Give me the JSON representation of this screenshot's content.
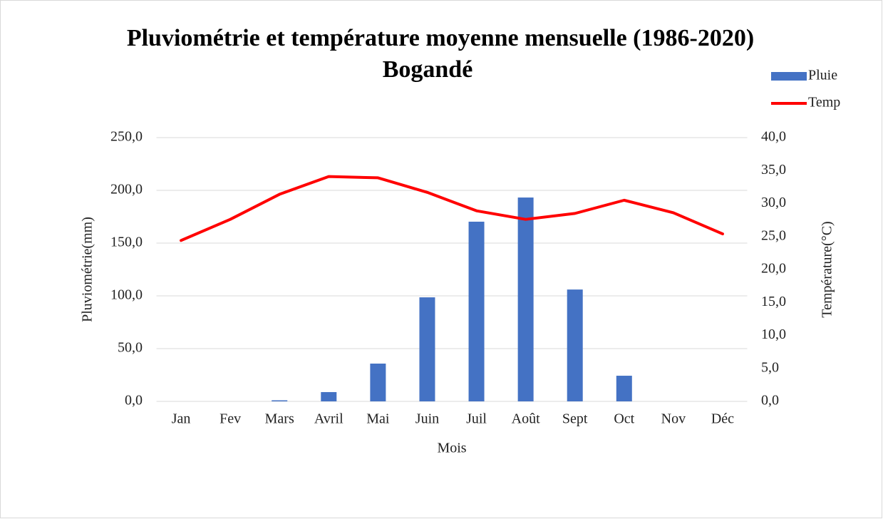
{
  "chart_data": {
    "type": "bar_line",
    "title": "Pluviométrie et température moyenne mensuelle (1986-2020)",
    "subtitle": "Bogandé",
    "x_label": "Mois",
    "y_label": "Pluviométrie(mm)",
    "y2_label": "Température(°C)",
    "categories": [
      "Jan",
      "Fev",
      "Mars",
      "Avril",
      "Mai",
      "Juin",
      "Juil",
      "Août",
      "Sept",
      "Oct",
      "Nov",
      "Déc"
    ],
    "series": [
      {
        "name": "Pluie",
        "type": "bar",
        "color": "#4472c4",
        "values": [
          0,
          0,
          1,
          8.8,
          35.8,
          98.6,
          170.3,
          193.2,
          106,
          24.3,
          0,
          0
        ]
      },
      {
        "name": "Temp",
        "type": "line",
        "axis": "y2",
        "color": "#ff0000",
        "values": [
          24.4,
          27.6,
          31.4,
          34.1,
          33.9,
          31.7,
          28.9,
          27.6,
          28.5,
          30.5,
          28.6,
          25.4
        ]
      }
    ],
    "ylim": [
      0,
      250
    ],
    "yticks": [
      {
        "value": 0,
        "label": "0,0"
      },
      {
        "value": 50,
        "label": "50,0"
      },
      {
        "value": 100,
        "label": "100,0"
      },
      {
        "value": 150,
        "label": "150,0"
      },
      {
        "value": 200,
        "label": "200,0"
      },
      {
        "value": 250,
        "label": "250,0"
      }
    ],
    "y2lim": [
      0,
      40
    ],
    "y2ticks": [
      {
        "value": 0,
        "label": "0,0"
      },
      {
        "value": 5,
        "label": "5,0"
      },
      {
        "value": 10,
        "label": "10,0"
      },
      {
        "value": 15,
        "label": "15,0"
      },
      {
        "value": 20,
        "label": "20,0"
      },
      {
        "value": 25,
        "label": "25,0"
      },
      {
        "value": 30,
        "label": "30,0"
      },
      {
        "value": 35,
        "label": "35,0"
      },
      {
        "value": 40,
        "label": "40,0"
      }
    ],
    "grid": true,
    "legend": "top-right"
  }
}
